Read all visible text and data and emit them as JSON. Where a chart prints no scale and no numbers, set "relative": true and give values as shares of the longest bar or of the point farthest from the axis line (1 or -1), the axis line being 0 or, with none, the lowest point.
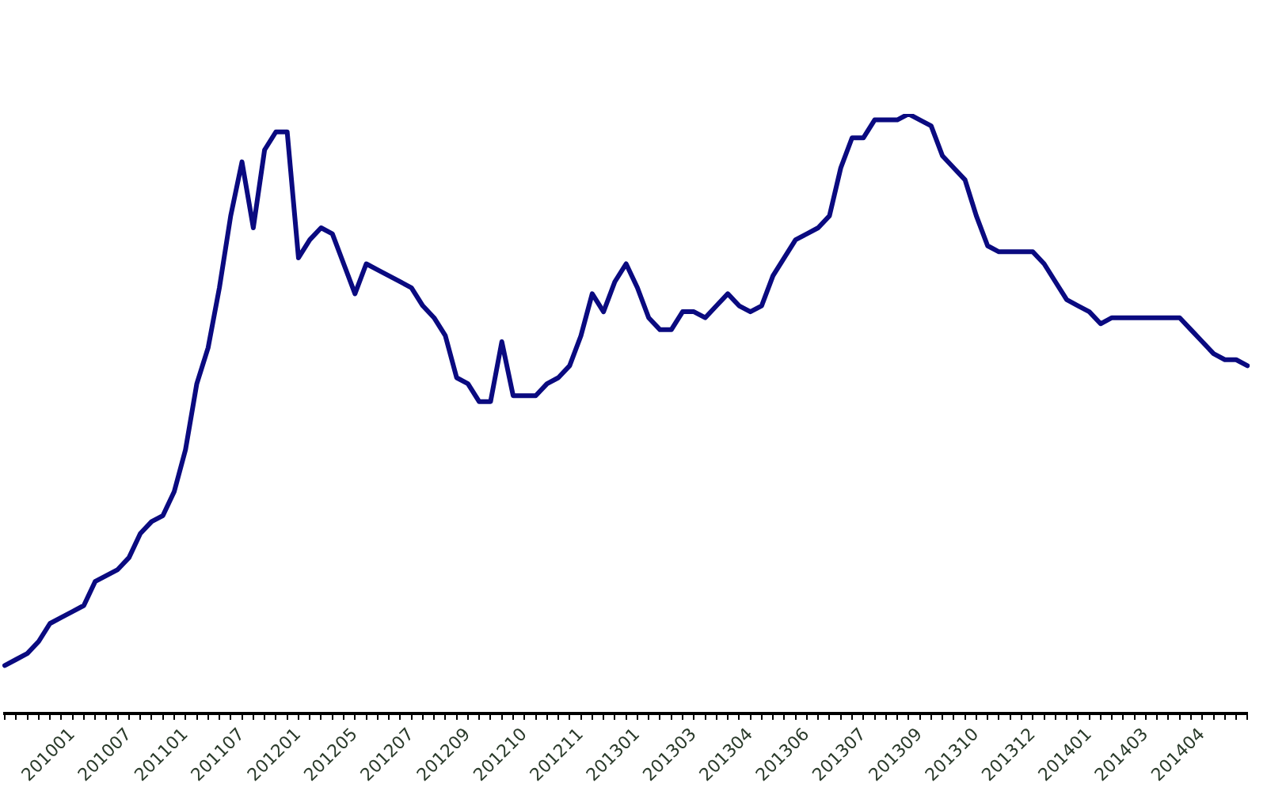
{
  "chart_data": {
    "type": "line",
    "relative": true,
    "categories": [
      null,
      null,
      null,
      null,
      null,
      null,
      "201001",
      null,
      null,
      null,
      null,
      "201007",
      null,
      null,
      null,
      null,
      "201101",
      null,
      null,
      null,
      null,
      "201107",
      null,
      null,
      null,
      null,
      "201201",
      null,
      null,
      null,
      null,
      "201205",
      null,
      null,
      null,
      null,
      "201207",
      null,
      null,
      null,
      null,
      "201209",
      null,
      null,
      null,
      null,
      "201210",
      null,
      null,
      null,
      null,
      "201211",
      null,
      null,
      null,
      null,
      "201301",
      null,
      null,
      null,
      null,
      "201303",
      null,
      null,
      null,
      null,
      "201304",
      null,
      null,
      null,
      null,
      "201306",
      null,
      null,
      null,
      null,
      "201307",
      null,
      null,
      null,
      null,
      "201309",
      null,
      null,
      null,
      null,
      "201310",
      null,
      null,
      null,
      null,
      "201312",
      null,
      null,
      null,
      null,
      "201401",
      null,
      null,
      null,
      null,
      "201403",
      null,
      null,
      null,
      null,
      "201404",
      null,
      null,
      null,
      null
    ],
    "series": [
      {
        "color": "#0a0a80",
        "values": [
          0.08,
          0.09,
          0.1,
          0.12,
          0.15,
          0.16,
          0.17,
          0.18,
          0.22,
          0.23,
          0.24,
          0.26,
          0.3,
          0.32,
          0.33,
          0.37,
          0.44,
          0.55,
          0.61,
          0.71,
          0.83,
          0.92,
          0.81,
          0.94,
          0.97,
          0.97,
          0.76,
          0.79,
          0.81,
          0.8,
          0.75,
          0.7,
          0.75,
          0.74,
          0.73,
          0.72,
          0.71,
          0.68,
          0.66,
          0.63,
          0.56,
          0.55,
          0.52,
          0.52,
          0.62,
          0.53,
          0.53,
          0.53,
          0.55,
          0.56,
          0.58,
          0.63,
          0.7,
          0.67,
          0.72,
          0.75,
          0.71,
          0.66,
          0.64,
          0.64,
          0.67,
          0.67,
          0.66,
          0.68,
          0.7,
          0.68,
          0.67,
          0.68,
          0.73,
          0.76,
          0.79,
          0.8,
          0.81,
          0.83,
          0.91,
          0.96,
          0.96,
          0.99,
          0.99,
          0.99,
          1,
          0.99,
          0.98,
          0.93,
          0.91,
          0.89,
          0.83,
          0.78,
          0.77,
          0.77,
          0.77,
          0.77,
          0.75,
          0.72,
          0.69,
          0.68,
          0.67,
          0.65,
          0.66,
          0.66,
          0.66,
          0.66,
          0.66,
          0.66,
          0.66,
          0.64,
          0.62,
          0.6,
          0.59,
          0.59,
          0.58
        ]
      }
    ]
  }
}
